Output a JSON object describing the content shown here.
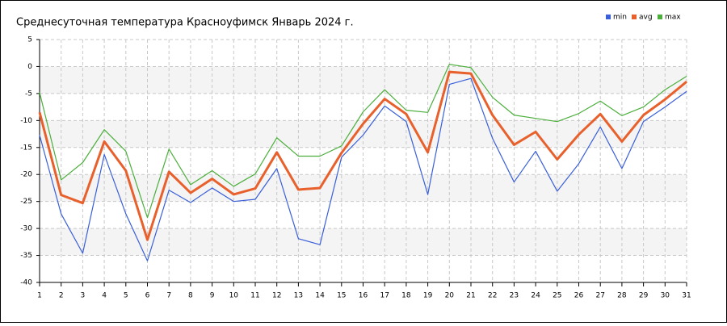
{
  "chart_data": {
    "type": "line",
    "title": "Среднесуточная температура Красноуфимск  Январь 2024 г.",
    "x": [
      1,
      2,
      3,
      4,
      5,
      6,
      7,
      8,
      9,
      10,
      11,
      12,
      13,
      14,
      15,
      16,
      17,
      18,
      19,
      20,
      21,
      22,
      23,
      24,
      25,
      26,
      27,
      28,
      29,
      30,
      31
    ],
    "series": [
      {
        "name": "min",
        "color": "#3a5fd9",
        "values": [
          -12.7,
          -27.3,
          -34.6,
          -16.3,
          -27.3,
          -36,
          -22.9,
          -25.2,
          -22.5,
          -25,
          -24.6,
          -18.9,
          -31.9,
          -33,
          -16.8,
          -12.7,
          -7.3,
          -10.2,
          -23.7,
          -3.3,
          -2.2,
          -13.3,
          -21.4,
          -15.7,
          -23.1,
          -18,
          -11.2,
          -18.9,
          -10.2,
          -7.5,
          -4.6
        ]
      },
      {
        "name": "avg",
        "color": "#e8602c",
        "values": [
          -8.5,
          -23.8,
          -25.3,
          -13.9,
          -19.3,
          -32.1,
          -19.5,
          -23.4,
          -20.8,
          -23.7,
          -22.6,
          -15.9,
          -22.8,
          -22.5,
          -16,
          -10.6,
          -6,
          -8.8,
          -15.9,
          -1,
          -1.3,
          -9,
          -14.5,
          -12.1,
          -17.2,
          -12.6,
          -8.8,
          -13.9,
          -9,
          -6.1,
          -2.8
        ]
      },
      {
        "name": "max",
        "color": "#4caf3c",
        "values": [
          -4.8,
          -21,
          -17.8,
          -11.7,
          -15.7,
          -28,
          -15.3,
          -21.9,
          -19.3,
          -22.2,
          -19.9,
          -13.2,
          -16.6,
          -16.6,
          -14.7,
          -8.4,
          -4.3,
          -8.1,
          -8.5,
          0.4,
          -0.2,
          -5.7,
          -9,
          -9.6,
          -10.2,
          -8.7,
          -6.4,
          -9.1,
          -7.5,
          -4.3,
          -1.8
        ]
      }
    ],
    "xlim": [
      1,
      31
    ],
    "xticks": [
      1,
      2,
      3,
      4,
      5,
      6,
      7,
      8,
      9,
      10,
      11,
      12,
      13,
      14,
      15,
      16,
      17,
      18,
      19,
      20,
      21,
      22,
      23,
      24,
      25,
      26,
      27,
      28,
      29,
      30,
      31
    ],
    "ylim": [
      -40,
      5
    ],
    "yticks": [
      -40,
      -35,
      -30,
      -25,
      -20,
      -15,
      -10,
      -5,
      0,
      5
    ],
    "grid": true,
    "legend": "top-right"
  }
}
